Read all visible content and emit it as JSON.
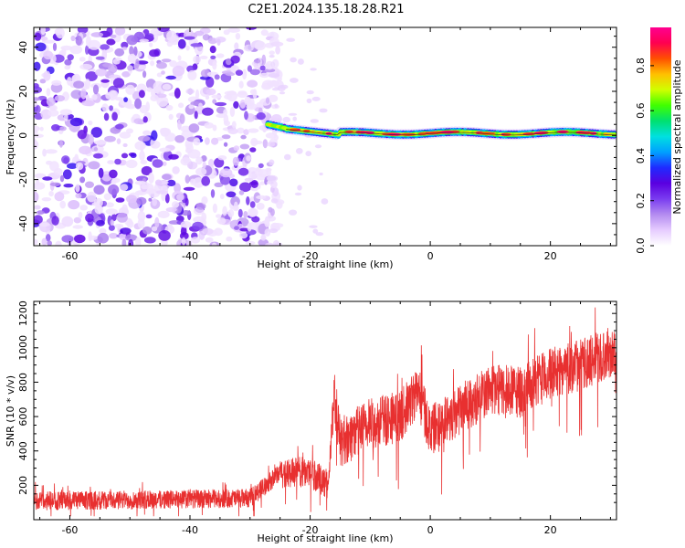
{
  "figure": {
    "title": "C2E1.2024.135.18.28.R21"
  },
  "colors": {
    "snr_line": "#e83030",
    "background": "#ffffff",
    "frame": "#000000",
    "colormap": [
      "#ffffff",
      "#e6ccff",
      "#b48cf0",
      "#7a3cf0",
      "#5a00e0",
      "#1f2aff",
      "#00a0ff",
      "#00e0e0",
      "#00e070",
      "#40ff00",
      "#d0ff00",
      "#ffc000",
      "#ff5000",
      "#ff0050",
      "#ff0090"
    ]
  },
  "chart_data": [
    {
      "type": "heatmap",
      "title": "",
      "xlabel": "Height of straight line (km)",
      "ylabel": "Frequency (Hz)",
      "xlim": [
        -66,
        31
      ],
      "ylim": [
        -50,
        49
      ],
      "xticks": [
        -60,
        -40,
        -20,
        0,
        20
      ],
      "yticks": [
        -40,
        -20,
        0,
        20,
        40
      ],
      "colorbar": {
        "label": "Normalized spectral amplitude",
        "range": [
          0,
          0.97
        ],
        "ticks": [
          "0.0",
          "0.2",
          "0.4",
          "0.6",
          "0.8"
        ]
      },
      "description_regions": [
        {
          "x_range": [
            -66,
            -27
          ],
          "frequency_range": [
            -50,
            49
          ],
          "amplitude_range": [
            0.0,
            0.3
          ]
        },
        {
          "x_range": [
            -27,
            31
          ],
          "frequency_center": 1,
          "amplitude_range": [
            0.2,
            0.97
          ]
        }
      ]
    },
    {
      "type": "line",
      "title": "",
      "xlabel": "Height of straight line (km)",
      "ylabel": "SNR (10 * v/v)",
      "xlim": [
        -66,
        31
      ],
      "ylim": [
        0,
        1270
      ],
      "xticks": [
        -60,
        -40,
        -20,
        0,
        20
      ],
      "yticks": [
        200,
        400,
        600,
        800,
        1000,
        1200
      ],
      "series": [
        {
          "values_trend": {
            "x": [
              -66,
              -60,
              -50,
              -40,
              -30,
              -25,
              -20,
              -17,
              -16,
              -15,
              -10,
              -5,
              -2,
              0,
              5,
              10,
              15,
              20,
              25,
              31
            ],
            "y": [
              110,
              110,
              115,
              120,
              125,
              270,
              280,
              200,
              750,
              450,
              560,
              600,
              750,
              520,
              640,
              760,
              740,
              850,
              900,
              990
            ]
          }
        }
      ]
    }
  ]
}
